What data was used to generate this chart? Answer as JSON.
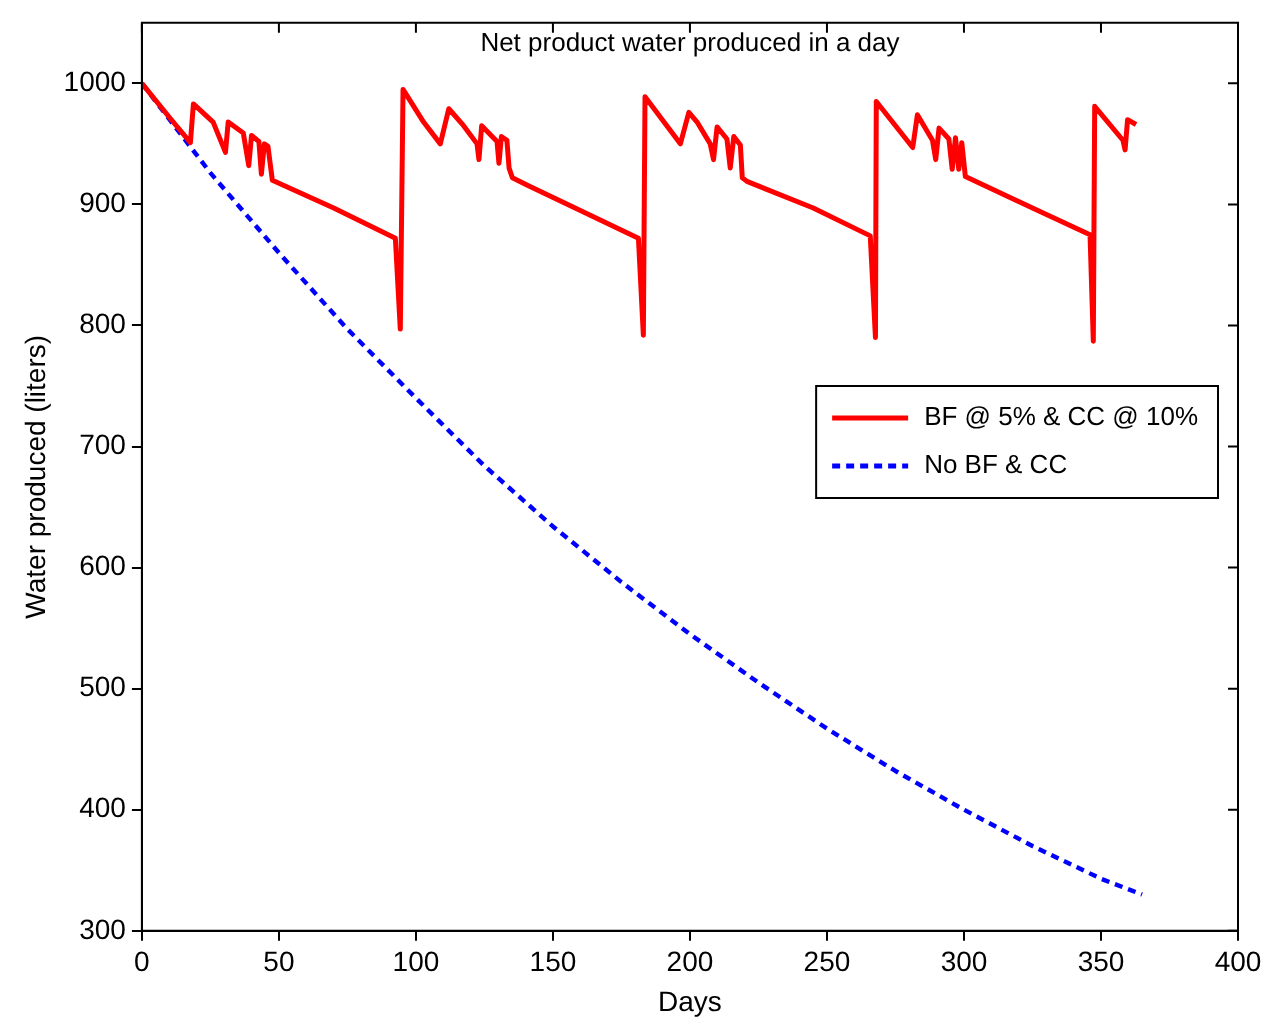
{
  "chart_data": {
    "type": "line",
    "title": "Net product water produced in a day",
    "xlabel": "Days",
    "ylabel": "Water produced (liters)",
    "xlim": [
      0,
      400
    ],
    "xticks": [
      0,
      50,
      100,
      150,
      200,
      250,
      300,
      350,
      400
    ],
    "ylim": [
      300,
      1050
    ],
    "yticks": [
      300,
      400,
      500,
      600,
      700,
      800,
      900,
      1000
    ],
    "grid": false,
    "legend": "right",
    "marker": "none",
    "series": [
      {
        "name": "BF @ 5% & CC @ 10%",
        "color": "#ff0000",
        "line_style": "solid",
        "x": [
          0,
          10,
          17.7,
          18.8,
          26,
          30.5,
          31.5,
          37,
          39,
          40,
          42.7,
          43.6,
          44.7,
          46,
          47.6,
          70,
          92.5,
          94.3,
          95.3,
          102.8,
          108.9,
          112,
          117.4,
          122.3,
          123,
          124,
          129.6,
          130.3,
          131.2,
          133.2,
          134,
          135.2,
          140.5,
          160,
          181.2,
          183,
          183.6,
          196.5,
          199.6,
          202.6,
          207.4,
          208.6,
          209.9,
          213.5,
          214.7,
          216,
          218.4,
          219.1,
          220.8,
          245,
          265.8,
          267.7,
          268,
          281.3,
          283,
          288.5,
          289.7,
          290.9,
          294.5,
          295.7,
          296.9,
          298.1,
          299.2,
          300.5,
          325,
          346,
          347.2,
          347.7,
          358,
          358.8,
          359.7,
          362.8
        ],
        "values": [
          1000,
          972,
          951,
          983,
          968,
          943,
          968,
          959,
          932,
          957,
          952,
          925,
          950,
          948,
          920,
          897,
          872,
          797,
          995,
          968,
          950,
          979,
          965,
          950,
          937,
          965,
          952,
          934,
          956,
          953,
          930,
          922,
          916,
          895,
          872,
          792,
          989,
          950,
          976,
          968,
          950,
          937,
          964,
          954,
          930,
          956,
          949,
          922,
          919,
          897,
          874,
          790,
          985,
          947,
          974,
          953,
          937,
          963,
          954,
          929,
          955,
          929,
          951,
          923,
          897,
          875,
          787,
          981,
          953,
          945,
          970,
          966
        ]
      },
      {
        "name": "No BF & CC",
        "color": "#0000ff",
        "line_style": "dashed",
        "x": [
          0,
          25,
          50,
          75,
          100,
          125,
          150,
          175,
          200,
          225,
          250,
          275,
          300,
          325,
          350,
          365
        ],
        "values": [
          1000,
          926,
          860,
          797,
          740,
          684,
          634,
          588,
          545,
          505,
          467,
          432,
          400,
          370,
          343,
          330
        ]
      }
    ]
  }
}
